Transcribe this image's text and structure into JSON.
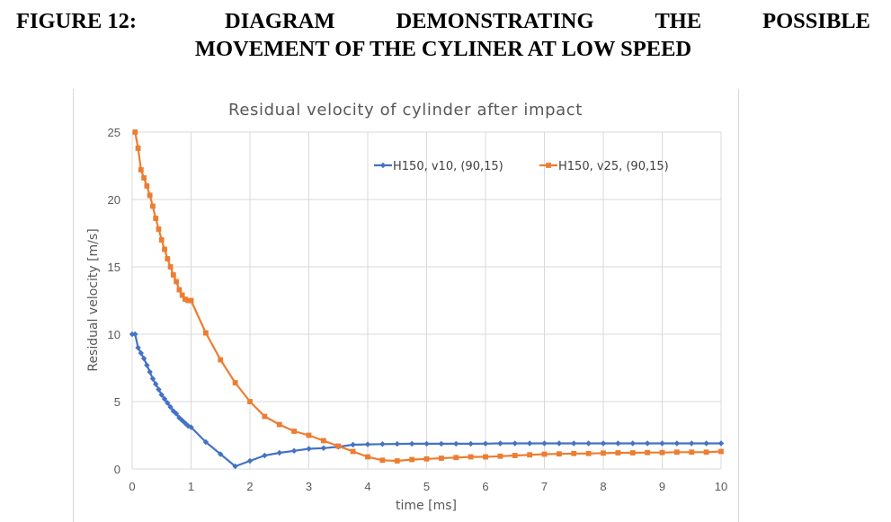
{
  "caption": {
    "line1_words": [
      "FIGURE 12:",
      "DIAGRAM",
      "DEMONSTRATING",
      "THE",
      "POSSIBLE"
    ],
    "line2": "MOVEMENT OF THE CYLINER AT LOW SPEED"
  },
  "colors": {
    "series1": "#4472c4",
    "series2": "#ed7d31",
    "grid": "#d9d9d9",
    "text": "#595959"
  },
  "chart_data": {
    "type": "line",
    "title": "Residual velocity of cylinder after  impact",
    "xlabel": "time [ms]",
    "ylabel": "Residual velocity [m/s]",
    "xlim": [
      0,
      10
    ],
    "ylim": [
      0,
      25
    ],
    "xticks": [
      "0",
      "1",
      "2",
      "3",
      "4",
      "5",
      "6",
      "7",
      "8",
      "9",
      "10"
    ],
    "yticks": [
      "0",
      "5",
      "10",
      "15",
      "20",
      "25"
    ],
    "grid": true,
    "legend": "top-right",
    "series": [
      {
        "name": "H150, v10, (90,15)",
        "marker": "diamond",
        "x": [
          0,
          0.05,
          0.1,
          0.15,
          0.2,
          0.25,
          0.3,
          0.35,
          0.4,
          0.45,
          0.5,
          0.55,
          0.6,
          0.65,
          0.7,
          0.75,
          0.8,
          0.85,
          0.9,
          0.95,
          1.0,
          1.25,
          1.5,
          1.75,
          2.0,
          2.25,
          2.5,
          2.75,
          3.0,
          3.25,
          3.5,
          3.75,
          4.0,
          4.25,
          4.5,
          4.75,
          5.0,
          5.25,
          5.5,
          5.75,
          6.0,
          6.25,
          6.5,
          6.75,
          7.0,
          7.25,
          7.5,
          7.75,
          8.0,
          8.25,
          8.5,
          8.75,
          9.0,
          9.25,
          9.5,
          9.75,
          10.0
        ],
        "y": [
          10.0,
          10.0,
          9.0,
          8.6,
          8.2,
          7.7,
          7.2,
          6.7,
          6.3,
          5.9,
          5.5,
          5.2,
          4.9,
          4.6,
          4.3,
          4.1,
          3.8,
          3.6,
          3.4,
          3.2,
          3.1,
          2.0,
          1.1,
          0.2,
          0.6,
          1.0,
          1.2,
          1.35,
          1.5,
          1.55,
          1.65,
          1.8,
          1.83,
          1.85,
          1.86,
          1.87,
          1.87,
          1.87,
          1.87,
          1.87,
          1.88,
          1.9,
          1.9,
          1.9,
          1.9,
          1.9,
          1.9,
          1.9,
          1.9,
          1.9,
          1.9,
          1.9,
          1.9,
          1.9,
          1.9,
          1.9,
          1.9
        ]
      },
      {
        "name": "H150, v25, (90,15)",
        "marker": "square",
        "x": [
          0.05,
          0.1,
          0.15,
          0.2,
          0.25,
          0.3,
          0.35,
          0.4,
          0.45,
          0.5,
          0.55,
          0.6,
          0.65,
          0.7,
          0.75,
          0.8,
          0.85,
          0.9,
          0.95,
          1.0,
          1.25,
          1.5,
          1.75,
          2.0,
          2.25,
          2.5,
          2.75,
          3.0,
          3.25,
          3.5,
          3.75,
          4.0,
          4.25,
          4.5,
          4.75,
          5.0,
          5.25,
          5.5,
          5.75,
          6.0,
          6.25,
          6.5,
          6.75,
          7.0,
          7.25,
          7.5,
          7.75,
          8.0,
          8.25,
          8.5,
          8.75,
          9.0,
          9.25,
          9.5,
          9.75,
          10.0
        ],
        "y": [
          25.0,
          23.8,
          22.2,
          21.6,
          21.0,
          20.3,
          19.5,
          18.6,
          17.8,
          17.0,
          16.3,
          15.6,
          15.0,
          14.4,
          13.9,
          13.3,
          12.9,
          12.6,
          12.5,
          12.5,
          10.1,
          8.1,
          6.4,
          5.0,
          3.9,
          3.3,
          2.8,
          2.5,
          2.1,
          1.7,
          1.3,
          0.9,
          0.65,
          0.6,
          0.7,
          0.75,
          0.8,
          0.85,
          0.9,
          0.9,
          0.95,
          1.0,
          1.05,
          1.1,
          1.12,
          1.15,
          1.15,
          1.18,
          1.2,
          1.2,
          1.22,
          1.22,
          1.25,
          1.25,
          1.25,
          1.3
        ]
      }
    ]
  }
}
